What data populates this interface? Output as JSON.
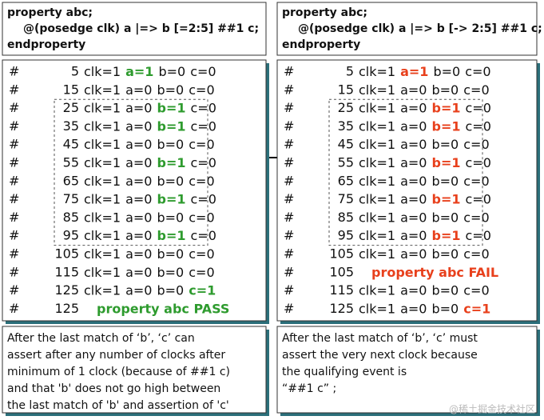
{
  "left": {
    "code": [
      "property abc;",
      "@(posedge clk) a |=> b [=2:5] ##1 c;",
      "endproperty"
    ],
    "log": [
      {
        "marker": "#",
        "time": "5",
        "parts": [
          {
            "text": "clk=1"
          },
          {
            "text": "a=1",
            "color": "#2e9b2e"
          },
          {
            "text": "b=0"
          },
          {
            "text": "c=0"
          }
        ]
      },
      {
        "marker": "#",
        "time": "15",
        "parts": [
          {
            "text": "clk=1"
          },
          {
            "text": "a=0"
          },
          {
            "text": "b=0"
          },
          {
            "text": "c=0"
          }
        ]
      },
      {
        "marker": "#",
        "time": "25",
        "parts": [
          {
            "text": "clk=1"
          },
          {
            "text": "a=0"
          },
          {
            "text": "b=1",
            "color": "#2e9b2e"
          },
          {
            "text": "c=0"
          }
        ]
      },
      {
        "marker": "#",
        "time": "35",
        "parts": [
          {
            "text": "clk=1"
          },
          {
            "text": "a=0"
          },
          {
            "text": "b=1",
            "color": "#2e9b2e"
          },
          {
            "text": "c=0"
          }
        ]
      },
      {
        "marker": "#",
        "time": "45",
        "parts": [
          {
            "text": "clk=1"
          },
          {
            "text": "a=0"
          },
          {
            "text": "b=0"
          },
          {
            "text": "c=0"
          }
        ]
      },
      {
        "marker": "#",
        "time": "55",
        "parts": [
          {
            "text": "clk=1"
          },
          {
            "text": "a=0"
          },
          {
            "text": "b=1",
            "color": "#2e9b2e"
          },
          {
            "text": "c=0"
          }
        ]
      },
      {
        "marker": "#",
        "time": "65",
        "parts": [
          {
            "text": "clk=1"
          },
          {
            "text": "a=0"
          },
          {
            "text": "b=0"
          },
          {
            "text": "c=0"
          }
        ]
      },
      {
        "marker": "#",
        "time": "75",
        "parts": [
          {
            "text": "clk=1"
          },
          {
            "text": "a=0"
          },
          {
            "text": "b=1",
            "color": "#2e9b2e"
          },
          {
            "text": "c=0"
          }
        ]
      },
      {
        "marker": "#",
        "time": "85",
        "parts": [
          {
            "text": "clk=1"
          },
          {
            "text": "a=0"
          },
          {
            "text": "b=0"
          },
          {
            "text": "c=0"
          }
        ]
      },
      {
        "marker": "#",
        "time": "95",
        "parts": [
          {
            "text": "clk=1"
          },
          {
            "text": "a=0"
          },
          {
            "text": "b=1",
            "color": "#2e9b2e"
          },
          {
            "text": "c=0"
          }
        ]
      },
      {
        "marker": "#",
        "time": "105",
        "parts": [
          {
            "text": "clk=1"
          },
          {
            "text": "a=0"
          },
          {
            "text": "b=0"
          },
          {
            "text": "c=0"
          }
        ]
      },
      {
        "marker": "#",
        "time": "115",
        "parts": [
          {
            "text": "clk=1"
          },
          {
            "text": "a=0"
          },
          {
            "text": "b=0"
          },
          {
            "text": "c=0"
          }
        ]
      },
      {
        "marker": "#",
        "time": "125",
        "parts": [
          {
            "text": "clk=1"
          },
          {
            "text": "a=0"
          },
          {
            "text": "b=0"
          },
          {
            "text": "c=1",
            "color": "#2e9b2e"
          }
        ]
      },
      {
        "marker": "#",
        "time": "125",
        "parts": [
          {
            "text": "property abc PASS",
            "color": "#2e9b2e"
          }
        ]
      }
    ],
    "note": [
      "After the last match of ‘b’, ‘c’ can",
      "assert after any number of clocks after",
      "minimum of 1 clock (because of ##1 c)",
      "and that 'b' does not go high between",
      "the last match of 'b' and assertion of 'c'"
    ]
  },
  "right": {
    "code": [
      "property abc;",
      "@(posedge clk) a |=> b [-> 2:5] ##1 c;",
      "endproperty"
    ],
    "log": [
      {
        "marker": "#",
        "time": "5",
        "parts": [
          {
            "text": "clk=1"
          },
          {
            "text": "a=1",
            "color": "#e8401c"
          },
          {
            "text": "b=0"
          },
          {
            "text": "c=0"
          }
        ]
      },
      {
        "marker": "#",
        "time": "15",
        "parts": [
          {
            "text": "clk=1"
          },
          {
            "text": "a=0"
          },
          {
            "text": "b=0"
          },
          {
            "text": "c=0"
          }
        ]
      },
      {
        "marker": "#",
        "time": "25",
        "parts": [
          {
            "text": "clk=1"
          },
          {
            "text": "a=0"
          },
          {
            "text": "b=1",
            "color": "#e8401c"
          },
          {
            "text": "c=0"
          }
        ]
      },
      {
        "marker": "#",
        "time": "35",
        "parts": [
          {
            "text": "clk=1"
          },
          {
            "text": "a=0"
          },
          {
            "text": "b=1",
            "color": "#e8401c"
          },
          {
            "text": "c=0"
          }
        ]
      },
      {
        "marker": "#",
        "time": "45",
        "parts": [
          {
            "text": "clk=1"
          },
          {
            "text": "a=0"
          },
          {
            "text": "b=0"
          },
          {
            "text": "c=0"
          }
        ]
      },
      {
        "marker": "#",
        "time": "55",
        "parts": [
          {
            "text": "clk=1"
          },
          {
            "text": "a=0"
          },
          {
            "text": "b=1",
            "color": "#e8401c"
          },
          {
            "text": "c=0"
          }
        ]
      },
      {
        "marker": "#",
        "time": "65",
        "parts": [
          {
            "text": "clk=1"
          },
          {
            "text": "a=0"
          },
          {
            "text": "b=0"
          },
          {
            "text": "c=0"
          }
        ]
      },
      {
        "marker": "#",
        "time": "75",
        "parts": [
          {
            "text": "clk=1"
          },
          {
            "text": "a=0"
          },
          {
            "text": "b=1",
            "color": "#e8401c"
          },
          {
            "text": "c=0"
          }
        ]
      },
      {
        "marker": "#",
        "time": "85",
        "parts": [
          {
            "text": "clk=1"
          },
          {
            "text": "a=0"
          },
          {
            "text": "b=0"
          },
          {
            "text": "c=0"
          }
        ]
      },
      {
        "marker": "#",
        "time": "95",
        "parts": [
          {
            "text": "clk=1"
          },
          {
            "text": "a=0"
          },
          {
            "text": "b=1",
            "color": "#e8401c"
          },
          {
            "text": "c=0"
          }
        ]
      },
      {
        "marker": "#",
        "time": "105",
        "parts": [
          {
            "text": "clk=1"
          },
          {
            "text": "a=0"
          },
          {
            "text": "b=0"
          },
          {
            "text": "c=0"
          }
        ]
      },
      {
        "marker": "#",
        "time": "105",
        "parts": [
          {
            "text": "property abc FAIL",
            "color": "#e8401c"
          }
        ]
      },
      {
        "marker": "#",
        "time": "115",
        "parts": [
          {
            "text": "clk=1"
          },
          {
            "text": "a=0"
          },
          {
            "text": "b=0"
          },
          {
            "text": "c=0"
          }
        ]
      },
      {
        "marker": "#",
        "time": "125",
        "parts": [
          {
            "text": "clk=1"
          },
          {
            "text": "a=0"
          },
          {
            "text": "b=0"
          },
          {
            "text": "c=1",
            "color": "#e8401c"
          }
        ]
      }
    ],
    "note": [
      "After the last match of ‘b’, ‘c’ must",
      "assert the very next clock because",
      "the qualifying event is",
      "“##1 c” ;"
    ]
  },
  "watermark": "@稀土掘金技术社区"
}
